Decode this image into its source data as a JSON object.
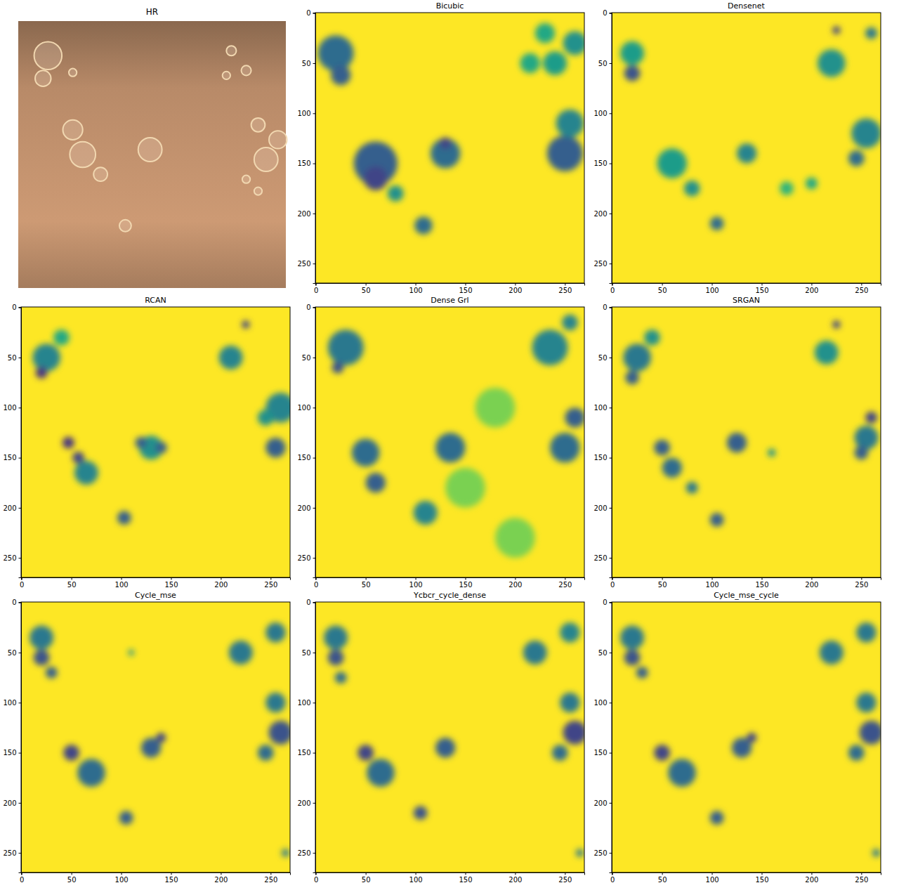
{
  "chart_data": [
    {
      "type": "image",
      "title": "HR",
      "color": "#b88a68",
      "objects": [
        {
          "x": 30,
          "y": 35,
          "r": 14
        },
        {
          "x": 25,
          "y": 58,
          "r": 8
        },
        {
          "x": 55,
          "y": 52,
          "r": 4
        },
        {
          "x": 215,
          "y": 30,
          "r": 5
        },
        {
          "x": 230,
          "y": 50,
          "r": 5
        },
        {
          "x": 210,
          "y": 55,
          "r": 4
        },
        {
          "x": 250,
          "y": 140,
          "r": 12
        },
        {
          "x": 262,
          "y": 120,
          "r": 9
        },
        {
          "x": 242,
          "y": 105,
          "r": 7
        },
        {
          "x": 55,
          "y": 110,
          "r": 10
        },
        {
          "x": 65,
          "y": 135,
          "r": 13
        },
        {
          "x": 83,
          "y": 155,
          "r": 7
        },
        {
          "x": 133,
          "y": 130,
          "r": 12
        },
        {
          "x": 108,
          "y": 207,
          "r": 6
        },
        {
          "x": 230,
          "y": 160,
          "r": 4
        },
        {
          "x": 242,
          "y": 172,
          "r": 4
        }
      ]
    },
    {
      "type": "heatmap",
      "title": "Bicubic",
      "xlim": [
        -0.5,
        269.5
      ],
      "ylim": [
        269.5,
        -0.5
      ],
      "xticks": [
        0,
        50,
        100,
        150,
        200,
        250
      ],
      "yticks": [
        0,
        50,
        100,
        150,
        200,
        250
      ],
      "color_range": [
        0,
        1
      ],
      "spots": [
        {
          "x": 20,
          "y": 40,
          "size": 18,
          "value": 0.35
        },
        {
          "x": 25,
          "y": 62,
          "size": 10,
          "value": 0.3
        },
        {
          "x": 60,
          "y": 150,
          "size": 22,
          "value": 0.3
        },
        {
          "x": 60,
          "y": 165,
          "size": 12,
          "value": 0.2
        },
        {
          "x": 130,
          "y": 140,
          "size": 15,
          "value": 0.35
        },
        {
          "x": 130,
          "y": 130,
          "size": 6,
          "value": 0.2
        },
        {
          "x": 80,
          "y": 180,
          "size": 8,
          "value": 0.5
        },
        {
          "x": 108,
          "y": 212,
          "size": 9,
          "value": 0.35
        },
        {
          "x": 250,
          "y": 140,
          "size": 18,
          "value": 0.3
        },
        {
          "x": 255,
          "y": 110,
          "size": 14,
          "value": 0.45
        },
        {
          "x": 260,
          "y": 30,
          "size": 12,
          "value": 0.5
        },
        {
          "x": 240,
          "y": 50,
          "size": 12,
          "value": 0.55
        },
        {
          "x": 230,
          "y": 20,
          "size": 10,
          "value": 0.6
        },
        {
          "x": 215,
          "y": 50,
          "size": 10,
          "value": 0.6
        }
      ]
    },
    {
      "type": "heatmap",
      "title": "Densenet",
      "xlim": [
        -0.5,
        269.5
      ],
      "ylim": [
        269.5,
        -0.5
      ],
      "xticks": [
        0,
        50,
        100,
        150,
        200,
        250
      ],
      "yticks": [
        0,
        50,
        100,
        150,
        200,
        250
      ],
      "color_range": [
        0,
        1
      ],
      "spots": [
        {
          "x": 20,
          "y": 60,
          "size": 8,
          "value": 0.25
        },
        {
          "x": 20,
          "y": 40,
          "size": 12,
          "value": 0.55
        },
        {
          "x": 225,
          "y": 17,
          "size": 4,
          "value": 0.2
        },
        {
          "x": 260,
          "y": 20,
          "size": 6,
          "value": 0.4
        },
        {
          "x": 220,
          "y": 50,
          "size": 14,
          "value": 0.5
        },
        {
          "x": 255,
          "y": 120,
          "size": 15,
          "value": 0.45
        },
        {
          "x": 245,
          "y": 145,
          "size": 8,
          "value": 0.35
        },
        {
          "x": 60,
          "y": 150,
          "size": 15,
          "value": 0.55
        },
        {
          "x": 80,
          "y": 175,
          "size": 8,
          "value": 0.5
        },
        {
          "x": 135,
          "y": 140,
          "size": 10,
          "value": 0.45
        },
        {
          "x": 105,
          "y": 210,
          "size": 7,
          "value": 0.35
        },
        {
          "x": 200,
          "y": 170,
          "size": 6,
          "value": 0.6
        },
        {
          "x": 175,
          "y": 175,
          "size": 7,
          "value": 0.65
        }
      ]
    },
    {
      "type": "heatmap",
      "title": "RCAN",
      "xlim": [
        -0.5,
        269.5
      ],
      "ylim": [
        269.5,
        -0.5
      ],
      "xticks": [
        0,
        50,
        100,
        150,
        200,
        250
      ],
      "yticks": [
        0,
        50,
        100,
        150,
        200,
        250
      ],
      "color_range": [
        0,
        1
      ],
      "spots": [
        {
          "x": 25,
          "y": 50,
          "size": 14,
          "value": 0.45
        },
        {
          "x": 20,
          "y": 65,
          "size": 6,
          "value": 0.15
        },
        {
          "x": 40,
          "y": 30,
          "size": 8,
          "value": 0.6
        },
        {
          "x": 225,
          "y": 17,
          "size": 4,
          "value": 0.2
        },
        {
          "x": 210,
          "y": 50,
          "size": 12,
          "value": 0.45
        },
        {
          "x": 260,
          "y": 100,
          "size": 15,
          "value": 0.45
        },
        {
          "x": 255,
          "y": 140,
          "size": 10,
          "value": 0.3
        },
        {
          "x": 245,
          "y": 110,
          "size": 8,
          "value": 0.5
        },
        {
          "x": 65,
          "y": 165,
          "size": 12,
          "value": 0.45
        },
        {
          "x": 47,
          "y": 135,
          "size": 6,
          "value": 0.15
        },
        {
          "x": 57,
          "y": 150,
          "size": 6,
          "value": 0.2
        },
        {
          "x": 130,
          "y": 140,
          "size": 12,
          "value": 0.5
        },
        {
          "x": 120,
          "y": 135,
          "size": 6,
          "value": 0.3
        },
        {
          "x": 140,
          "y": 140,
          "size": 6,
          "value": 0.3
        },
        {
          "x": 103,
          "y": 210,
          "size": 7,
          "value": 0.3
        }
      ]
    },
    {
      "type": "heatmap",
      "title": "Dense Grl",
      "xlim": [
        -0.5,
        269.5
      ],
      "ylim": [
        269.5,
        -0.5
      ],
      "xticks": [
        0,
        50,
        100,
        150,
        200,
        250
      ],
      "yticks": [
        0,
        50,
        100,
        150,
        200,
        250
      ],
      "color_range": [
        0,
        1
      ],
      "spots": [
        {
          "x": 150,
          "y": 180,
          "size": 20,
          "value": 0.8
        },
        {
          "x": 200,
          "y": 230,
          "size": 20,
          "value": 0.8
        },
        {
          "x": 180,
          "y": 100,
          "size": 20,
          "value": 0.8
        },
        {
          "x": 30,
          "y": 40,
          "size": 18,
          "value": 0.4
        },
        {
          "x": 22,
          "y": 60,
          "size": 6,
          "value": 0.25
        },
        {
          "x": 50,
          "y": 145,
          "size": 14,
          "value": 0.35
        },
        {
          "x": 60,
          "y": 175,
          "size": 10,
          "value": 0.3
        },
        {
          "x": 135,
          "y": 140,
          "size": 15,
          "value": 0.35
        },
        {
          "x": 110,
          "y": 205,
          "size": 12,
          "value": 0.45
        },
        {
          "x": 250,
          "y": 140,
          "size": 15,
          "value": 0.35
        },
        {
          "x": 260,
          "y": 110,
          "size": 10,
          "value": 0.3
        },
        {
          "x": 235,
          "y": 40,
          "size": 18,
          "value": 0.45
        },
        {
          "x": 255,
          "y": 15,
          "size": 8,
          "value": 0.45
        }
      ]
    },
    {
      "type": "heatmap",
      "title": "SRGAN",
      "xlim": [
        -0.5,
        269.5
      ],
      "ylim": [
        269.5,
        -0.5
      ],
      "xticks": [
        0,
        50,
        100,
        150,
        200,
        250
      ],
      "yticks": [
        0,
        50,
        100,
        150,
        200,
        250
      ],
      "color_range": [
        0,
        1
      ],
      "spots": [
        {
          "x": 25,
          "y": 50,
          "size": 14,
          "value": 0.4
        },
        {
          "x": 20,
          "y": 70,
          "size": 7,
          "value": 0.3
        },
        {
          "x": 40,
          "y": 30,
          "size": 8,
          "value": 0.5
        },
        {
          "x": 225,
          "y": 17,
          "size": 4,
          "value": 0.2
        },
        {
          "x": 215,
          "y": 45,
          "size": 12,
          "value": 0.5
        },
        {
          "x": 260,
          "y": 110,
          "size": 6,
          "value": 0.2
        },
        {
          "x": 255,
          "y": 130,
          "size": 12,
          "value": 0.4
        },
        {
          "x": 250,
          "y": 145,
          "size": 7,
          "value": 0.3
        },
        {
          "x": 50,
          "y": 140,
          "size": 8,
          "value": 0.3
        },
        {
          "x": 60,
          "y": 160,
          "size": 10,
          "value": 0.35
        },
        {
          "x": 80,
          "y": 180,
          "size": 6,
          "value": 0.4
        },
        {
          "x": 125,
          "y": 135,
          "size": 10,
          "value": 0.3
        },
        {
          "x": 105,
          "y": 212,
          "size": 7,
          "value": 0.3
        },
        {
          "x": 160,
          "y": 145,
          "size": 4,
          "value": 0.5
        }
      ]
    },
    {
      "type": "heatmap",
      "title": "Cycle_mse",
      "xlim": [
        -0.5,
        269.5
      ],
      "ylim": [
        269.5,
        -0.5
      ],
      "xticks": [
        0,
        50,
        100,
        150,
        200,
        250
      ],
      "yticks": [
        0,
        50,
        100,
        150,
        200,
        250
      ],
      "color_range": [
        0,
        1
      ],
      "spots": [
        {
          "x": 20,
          "y": 35,
          "size": 12,
          "value": 0.4
        },
        {
          "x": 20,
          "y": 55,
          "size": 8,
          "value": 0.25
        },
        {
          "x": 30,
          "y": 70,
          "size": 6,
          "value": 0.3
        },
        {
          "x": 110,
          "y": 50,
          "size": 3,
          "value": 0.5
        },
        {
          "x": 220,
          "y": 50,
          "size": 12,
          "value": 0.4
        },
        {
          "x": 255,
          "y": 30,
          "size": 10,
          "value": 0.4
        },
        {
          "x": 260,
          "y": 130,
          "size": 12,
          "value": 0.25
        },
        {
          "x": 255,
          "y": 100,
          "size": 10,
          "value": 0.4
        },
        {
          "x": 245,
          "y": 150,
          "size": 8,
          "value": 0.35
        },
        {
          "x": 70,
          "y": 170,
          "size": 14,
          "value": 0.35
        },
        {
          "x": 50,
          "y": 150,
          "size": 8,
          "value": 0.2
        },
        {
          "x": 130,
          "y": 145,
          "size": 10,
          "value": 0.3
        },
        {
          "x": 140,
          "y": 135,
          "size": 5,
          "value": 0.2
        },
        {
          "x": 105,
          "y": 215,
          "size": 7,
          "value": 0.3
        },
        {
          "x": 265,
          "y": 250,
          "size": 4,
          "value": 0.4
        }
      ]
    },
    {
      "type": "heatmap",
      "title": "Ycbcr_cycle_dense",
      "xlim": [
        -0.5,
        269.5
      ],
      "ylim": [
        269.5,
        -0.5
      ],
      "xticks": [
        0,
        50,
        100,
        150,
        200,
        250
      ],
      "yticks": [
        0,
        50,
        100,
        150,
        200,
        250
      ],
      "color_range": [
        0,
        1
      ],
      "spots": [
        {
          "x": 20,
          "y": 35,
          "size": 12,
          "value": 0.4
        },
        {
          "x": 20,
          "y": 55,
          "size": 8,
          "value": 0.25
        },
        {
          "x": 25,
          "y": 75,
          "size": 6,
          "value": 0.35
        },
        {
          "x": 220,
          "y": 50,
          "size": 12,
          "value": 0.4
        },
        {
          "x": 255,
          "y": 30,
          "size": 10,
          "value": 0.45
        },
        {
          "x": 260,
          "y": 130,
          "size": 12,
          "value": 0.2
        },
        {
          "x": 255,
          "y": 100,
          "size": 10,
          "value": 0.4
        },
        {
          "x": 245,
          "y": 150,
          "size": 8,
          "value": 0.35
        },
        {
          "x": 65,
          "y": 170,
          "size": 14,
          "value": 0.35
        },
        {
          "x": 50,
          "y": 150,
          "size": 8,
          "value": 0.2
        },
        {
          "x": 130,
          "y": 145,
          "size": 10,
          "value": 0.3
        },
        {
          "x": 105,
          "y": 210,
          "size": 7,
          "value": 0.25
        },
        {
          "x": 265,
          "y": 250,
          "size": 4,
          "value": 0.4
        }
      ]
    },
    {
      "type": "heatmap",
      "title": "Cycle_mse_cycle",
      "xlim": [
        -0.5,
        269.5
      ],
      "ylim": [
        269.5,
        -0.5
      ],
      "xticks": [
        0,
        50,
        100,
        150,
        200,
        250
      ],
      "yticks": [
        0,
        50,
        100,
        150,
        200,
        250
      ],
      "color_range": [
        0,
        1
      ],
      "spots": [
        {
          "x": 20,
          "y": 35,
          "size": 12,
          "value": 0.4
        },
        {
          "x": 20,
          "y": 55,
          "size": 8,
          "value": 0.25
        },
        {
          "x": 30,
          "y": 70,
          "size": 6,
          "value": 0.3
        },
        {
          "x": 220,
          "y": 50,
          "size": 12,
          "value": 0.4
        },
        {
          "x": 255,
          "y": 30,
          "size": 10,
          "value": 0.4
        },
        {
          "x": 260,
          "y": 130,
          "size": 12,
          "value": 0.25
        },
        {
          "x": 255,
          "y": 100,
          "size": 10,
          "value": 0.4
        },
        {
          "x": 245,
          "y": 150,
          "size": 8,
          "value": 0.35
        },
        {
          "x": 70,
          "y": 170,
          "size": 14,
          "value": 0.35
        },
        {
          "x": 50,
          "y": 150,
          "size": 8,
          "value": 0.2
        },
        {
          "x": 130,
          "y": 145,
          "size": 10,
          "value": 0.3
        },
        {
          "x": 140,
          "y": 135,
          "size": 5,
          "value": 0.2
        },
        {
          "x": 105,
          "y": 215,
          "size": 7,
          "value": 0.3
        },
        {
          "x": 265,
          "y": 250,
          "size": 4,
          "value": 0.4
        }
      ]
    }
  ]
}
